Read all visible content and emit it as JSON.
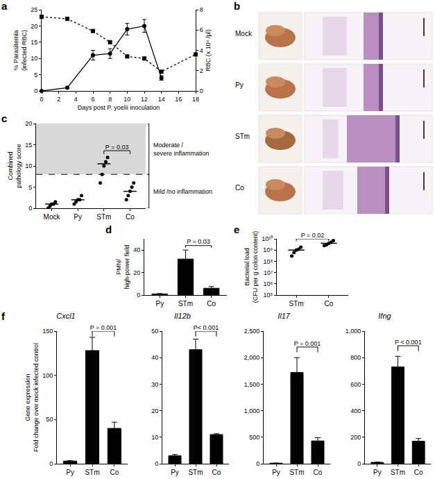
{
  "chart_data": [
    {
      "label": "a",
      "type": "line",
      "x": [
        0,
        3,
        6,
        8,
        10,
        12,
        14,
        18
      ],
      "xlabel": "Days post P. yoelii inoculation",
      "xlim": [
        0,
        18
      ],
      "xticks": [
        0,
        2,
        4,
        6,
        8,
        10,
        12,
        14,
        16,
        18
      ],
      "ylabel": [
        "% Parasitemia",
        "(infected RBC)"
      ],
      "ylim": [
        0,
        25
      ],
      "yticks": [
        0,
        5,
        10,
        15,
        20,
        25
      ],
      "y2label": "RBC (x 10⁶ /µl)",
      "y2lim": [
        0,
        8
      ],
      "y2ticks": [
        0,
        2,
        4,
        6,
        8
      ],
      "series": [
        {
          "axis": "y",
          "color": "#000000",
          "marker": "circle",
          "line_style": "solid",
          "values": [
            0,
            1,
            11,
            11.5,
            19,
            20,
            4,
            null
          ],
          "errors": [
            0,
            0.2,
            1.5,
            1.5,
            1.8,
            2,
            0.7,
            0
          ]
        },
        {
          "axis": "y2",
          "color": "#000000",
          "marker": "square",
          "line_style": "dot",
          "values": [
            7.3,
            7.1,
            5.9,
            4.8,
            3.4,
            3.2,
            1.9,
            3.6
          ]
        }
      ]
    },
    {
      "label": "c",
      "type": "scatter",
      "categories": [
        "Mock",
        "Py",
        "STm",
        "Co"
      ],
      "points": [
        [
          0,
          0.5,
          1,
          1,
          1.5
        ],
        [
          1,
          1.5,
          2,
          2,
          3
        ],
        [
          6,
          8,
          10,
          11,
          12
        ],
        [
          2,
          3,
          4,
          5,
          6
        ]
      ],
      "medians": [
        1,
        2,
        10.5,
        4
      ],
      "color": "#000000",
      "ylabel": [
        "Combined",
        "pathology score"
      ],
      "ylim": [
        0,
        20
      ],
      "yticks": [
        0,
        5,
        10,
        15,
        20
      ],
      "threshold": 8,
      "regions": [
        {
          "text": [
            "Moderate /",
            "severe inflammation"
          ],
          "from": 8,
          "to": 20
        },
        {
          "text": [
            "Mild /no inflammation"
          ],
          "from": 0,
          "to": 8
        }
      ],
      "comparisons": [
        {
          "from": "STm",
          "to": "Co",
          "text": "P = 0.03"
        }
      ]
    },
    {
      "label": "d",
      "type": "bar",
      "categories": [
        "Py",
        "STm",
        "Co"
      ],
      "values": [
        1,
        32,
        6
      ],
      "errors": [
        0.3,
        8,
        1.5
      ],
      "color": "#000000",
      "ylabel": [
        "PMN/",
        "high-power field"
      ],
      "ylim": [
        0,
        50
      ],
      "yticks": [
        0,
        20,
        40
      ],
      "comparisons": [
        {
          "from": "STm",
          "to": "Co",
          "text": "P = 0.03"
        }
      ]
    },
    {
      "label": "e",
      "type": "scatter",
      "log": "y",
      "categories": [
        "STm",
        "Co"
      ],
      "points": [
        [
          300000000,
          600000000,
          1000000000,
          1200000000,
          1800000000
        ],
        [
          2500000000,
          3000000000,
          4000000000,
          5000000000,
          7000000000
        ]
      ],
      "medians": [
        1000000000,
        4000000000
      ],
      "color": "#000000",
      "ylabel": [
        "Bacterial load",
        "(CFU per g colon content)"
      ],
      "ylim": [
        100000,
        10000000000
      ],
      "yticks": [
        {
          "value": 100000,
          "label": "10⁵"
        },
        {
          "value": 1000000,
          "label": "10⁶"
        },
        {
          "value": 10000000,
          "label": "10⁷"
        },
        {
          "value": 100000000,
          "label": "10⁸"
        },
        {
          "value": 1000000000,
          "label": "10⁹"
        },
        {
          "value": 10000000000,
          "label": "10¹⁰"
        }
      ],
      "comparisons": [
        {
          "from": "STm",
          "to": "Co",
          "text": "P = 0.02"
        }
      ]
    },
    {
      "label": "f",
      "type": "bar",
      "title": "Cxcl1",
      "categories": [
        "Py",
        "STm",
        "Co"
      ],
      "values": [
        3,
        128,
        40
      ],
      "errors": [
        0.5,
        15,
        7
      ],
      "color": "#000000",
      "ylabel": [
        "Gene expression",
        "Fold change over mock infected control"
      ],
      "ylim": [
        0,
        150
      ],
      "yticks": [
        0,
        50,
        100,
        150
      ],
      "comparisons": [
        {
          "from": "STm",
          "to": "Co",
          "text": "P = 0.001"
        }
      ]
    },
    {
      "type": "bar",
      "title": "Il12b",
      "categories": [
        "Py",
        "STm",
        "Co"
      ],
      "values": [
        3,
        43,
        11
      ],
      "errors": [
        0.5,
        4,
        0.3
      ],
      "color": "#000000",
      "ylim": [
        0,
        50
      ],
      "yticks": [
        0,
        10,
        20,
        30,
        40,
        50
      ],
      "comparisons": [
        {
          "from": "STm",
          "to": "Co",
          "text": "P< 0.001"
        }
      ]
    },
    {
      "type": "bar",
      "title": "Il17",
      "categories": [
        "Py",
        "STm",
        "Co"
      ],
      "values": [
        10,
        1720,
        430
      ],
      "errors": [
        3,
        280,
        60
      ],
      "color": "#000000",
      "ylim": [
        0,
        2500
      ],
      "yticks": [
        0,
        500,
        {
          "value": 1000,
          "label": "1,000"
        },
        {
          "value": 1500,
          "label": "1,500"
        },
        {
          "value": 2000,
          "label": "2,000"
        },
        {
          "value": 2500,
          "label": "2,500"
        }
      ],
      "comparisons": [
        {
          "from": "STm",
          "to": "Co",
          "text": "P = 0.001"
        }
      ]
    },
    {
      "type": "bar",
      "title": "Ifng",
      "categories": [
        "Py",
        "STm",
        "Co"
      ],
      "values": [
        10,
        730,
        170
      ],
      "errors": [
        3,
        80,
        20
      ],
      "color": "#000000",
      "ylim": [
        0,
        1000
      ],
      "yticks": [
        0,
        200,
        400,
        600,
        800,
        {
          "value": 1000,
          "label": "1,000"
        }
      ],
      "comparisons": [
        {
          "from": "STm",
          "to": "Co",
          "text": "P < 0.001"
        }
      ]
    }
  ],
  "image_panel": {
    "label": "b",
    "rows": [
      "Mock",
      "Py",
      "STm",
      "Co"
    ]
  }
}
